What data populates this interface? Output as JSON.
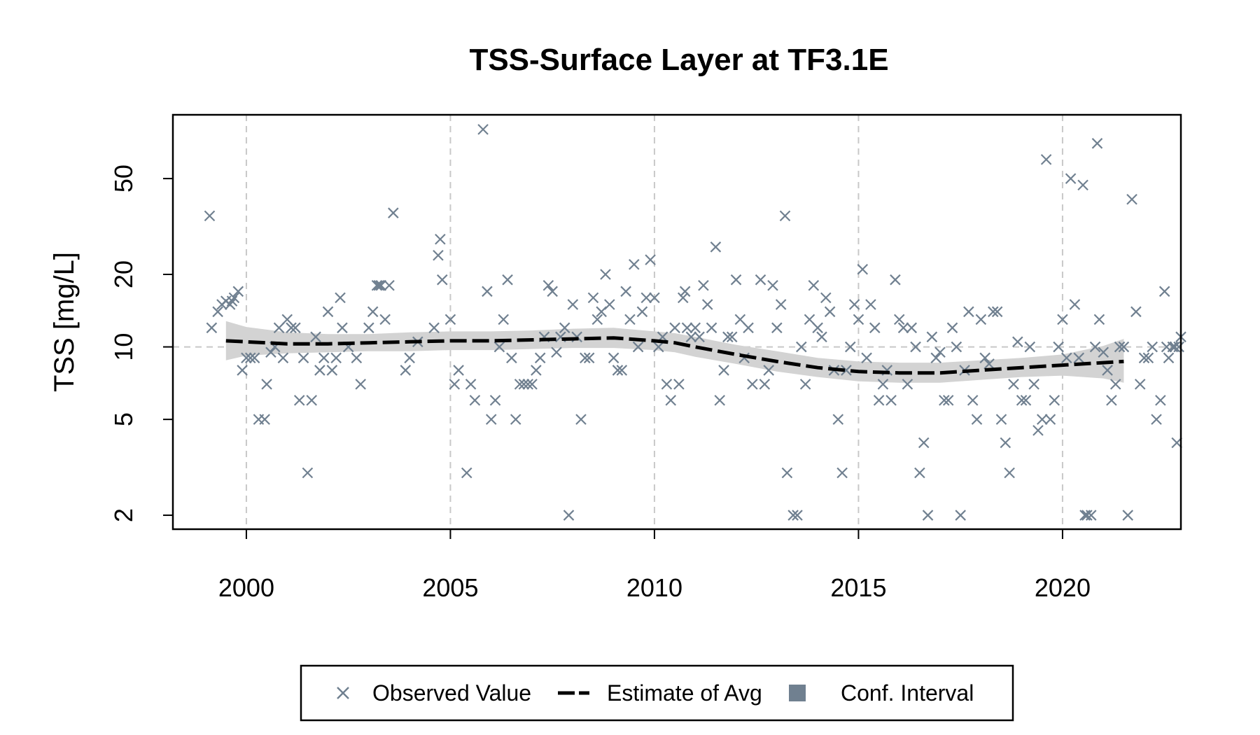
{
  "chart_data": {
    "type": "scatter",
    "title": "TSS-Surface Layer at TF3.1E",
    "xlabel": "",
    "ylabel": "TSS [mg/L]",
    "y_scale": "log",
    "xlim": [
      1998.2,
      2022.9
    ],
    "ylim": [
      1.75,
      92
    ],
    "x_ticks": [
      2000,
      2005,
      2010,
      2015,
      2020
    ],
    "x_tick_labels": [
      "2000",
      "2005",
      "2010",
      "2015",
      "2020"
    ],
    "y_ticks": [
      2,
      5,
      10,
      20,
      50
    ],
    "y_tick_labels": [
      "2",
      "5",
      "10",
      "20",
      "50"
    ],
    "grid": true,
    "reference_line_y": 10,
    "colors": {
      "observed": "#708090",
      "estimate": "#000000",
      "ci": "#d3d3d3",
      "grid": "#c8c8c8"
    },
    "legend": {
      "position": "bottom",
      "items": [
        {
          "label": "Observed Value",
          "marker": "cross"
        },
        {
          "label": "Estimate of Avg",
          "marker": "dashed-line"
        },
        {
          "label": "Conf. Interval",
          "marker": "square"
        }
      ]
    },
    "series": [
      {
        "name": "Observed Value",
        "kind": "points",
        "points": [
          [
            1999.1,
            35
          ],
          [
            1999.15,
            12
          ],
          [
            1999.3,
            14
          ],
          [
            1999.4,
            15
          ],
          [
            1999.5,
            15.5
          ],
          [
            1999.6,
            15
          ],
          [
            1999.7,
            16
          ],
          [
            1999.8,
            17
          ],
          [
            1999.65,
            15.5
          ],
          [
            1999.9,
            8
          ],
          [
            2000.0,
            9
          ],
          [
            2000.1,
            9
          ],
          [
            2000.2,
            9
          ],
          [
            2000.3,
            5
          ],
          [
            2000.45,
            5
          ],
          [
            2000.5,
            7
          ],
          [
            2000.6,
            9.5
          ],
          [
            2000.7,
            10
          ],
          [
            2000.8,
            12
          ],
          [
            2000.9,
            9
          ],
          [
            2001.0,
            13
          ],
          [
            2001.1,
            12
          ],
          [
            2001.2,
            12
          ],
          [
            2001.3,
            6
          ],
          [
            2001.4,
            9
          ],
          [
            2001.5,
            3
          ],
          [
            2001.6,
            6
          ],
          [
            2001.7,
            11
          ],
          [
            2001.8,
            8
          ],
          [
            2001.9,
            9
          ],
          [
            2002.0,
            14
          ],
          [
            2002.1,
            8
          ],
          [
            2002.2,
            9
          ],
          [
            2002.3,
            16
          ],
          [
            2002.35,
            12
          ],
          [
            2002.5,
            10
          ],
          [
            2002.7,
            9
          ],
          [
            2002.8,
            7
          ],
          [
            2003.0,
            12
          ],
          [
            2003.1,
            14
          ],
          [
            2003.2,
            18
          ],
          [
            2003.25,
            18
          ],
          [
            2003.3,
            18
          ],
          [
            2003.4,
            13
          ],
          [
            2003.5,
            18
          ],
          [
            2003.6,
            36
          ],
          [
            2003.9,
            8
          ],
          [
            2004.0,
            9
          ],
          [
            2004.2,
            10.5
          ],
          [
            2004.6,
            12
          ],
          [
            2004.7,
            24
          ],
          [
            2004.75,
            28
          ],
          [
            2004.8,
            19
          ],
          [
            2005.0,
            13
          ],
          [
            2005.1,
            7
          ],
          [
            2005.2,
            8
          ],
          [
            2005.4,
            3
          ],
          [
            2005.5,
            7
          ],
          [
            2005.6,
            6
          ],
          [
            2005.8,
            80
          ],
          [
            2005.9,
            17
          ],
          [
            2006.0,
            5
          ],
          [
            2006.1,
            6
          ],
          [
            2006.2,
            10
          ],
          [
            2006.3,
            13
          ],
          [
            2006.4,
            19
          ],
          [
            2006.5,
            9
          ],
          [
            2006.6,
            5
          ],
          [
            2006.7,
            7
          ],
          [
            2006.8,
            7
          ],
          [
            2006.9,
            7
          ],
          [
            2007.0,
            7
          ],
          [
            2007.1,
            8
          ],
          [
            2007.2,
            9
          ],
          [
            2007.3,
            11
          ],
          [
            2007.4,
            18
          ],
          [
            2007.5,
            17
          ],
          [
            2007.6,
            9.5
          ],
          [
            2007.7,
            11
          ],
          [
            2007.8,
            12
          ],
          [
            2007.9,
            2
          ],
          [
            2008.0,
            15
          ],
          [
            2008.1,
            11
          ],
          [
            2008.2,
            5
          ],
          [
            2008.3,
            9
          ],
          [
            2008.4,
            9
          ],
          [
            2008.5,
            16
          ],
          [
            2008.6,
            13
          ],
          [
            2008.7,
            14
          ],
          [
            2008.8,
            20
          ],
          [
            2008.9,
            15
          ],
          [
            2009.0,
            9
          ],
          [
            2009.1,
            8
          ],
          [
            2009.2,
            8
          ],
          [
            2009.3,
            17
          ],
          [
            2009.4,
            13
          ],
          [
            2009.5,
            22
          ],
          [
            2009.6,
            10
          ],
          [
            2009.7,
            14
          ],
          [
            2009.8,
            16
          ],
          [
            2009.9,
            23
          ],
          [
            2010.0,
            16
          ],
          [
            2010.1,
            10
          ],
          [
            2010.2,
            11
          ],
          [
            2010.3,
            7
          ],
          [
            2010.4,
            6
          ],
          [
            2010.5,
            12
          ],
          [
            2010.6,
            7
          ],
          [
            2010.7,
            16
          ],
          [
            2010.75,
            17
          ],
          [
            2010.8,
            12
          ],
          [
            2010.9,
            11
          ],
          [
            2011.0,
            12
          ],
          [
            2011.1,
            11
          ],
          [
            2011.2,
            18
          ],
          [
            2011.3,
            15
          ],
          [
            2011.4,
            12
          ],
          [
            2011.5,
            26
          ],
          [
            2011.6,
            6
          ],
          [
            2011.7,
            8
          ],
          [
            2011.8,
            11
          ],
          [
            2011.9,
            11
          ],
          [
            2012.0,
            19
          ],
          [
            2012.1,
            13
          ],
          [
            2012.2,
            9
          ],
          [
            2012.3,
            12
          ],
          [
            2012.4,
            7
          ],
          [
            2012.6,
            19
          ],
          [
            2012.7,
            7
          ],
          [
            2012.8,
            8
          ],
          [
            2012.9,
            18
          ],
          [
            2013.0,
            12
          ],
          [
            2013.1,
            15
          ],
          [
            2013.2,
            35
          ],
          [
            2013.25,
            3
          ],
          [
            2013.4,
            2
          ],
          [
            2013.5,
            2
          ],
          [
            2013.6,
            10
          ],
          [
            2013.7,
            7
          ],
          [
            2013.8,
            13
          ],
          [
            2013.9,
            18
          ],
          [
            2014.0,
            12
          ],
          [
            2014.1,
            11
          ],
          [
            2014.2,
            16
          ],
          [
            2014.3,
            14
          ],
          [
            2014.4,
            8
          ],
          [
            2014.5,
            5
          ],
          [
            2014.6,
            3
          ],
          [
            2014.7,
            8
          ],
          [
            2014.8,
            10
          ],
          [
            2014.9,
            15
          ],
          [
            2015.0,
            13
          ],
          [
            2015.1,
            21
          ],
          [
            2015.2,
            9
          ],
          [
            2015.3,
            15
          ],
          [
            2015.4,
            12
          ],
          [
            2015.5,
            6
          ],
          [
            2015.6,
            7
          ],
          [
            2015.7,
            8
          ],
          [
            2015.8,
            6
          ],
          [
            2015.9,
            19
          ],
          [
            2016.0,
            13
          ],
          [
            2016.1,
            12
          ],
          [
            2016.2,
            7
          ],
          [
            2016.3,
            12
          ],
          [
            2016.4,
            10
          ],
          [
            2016.5,
            3
          ],
          [
            2016.6,
            4
          ],
          [
            2016.7,
            2
          ],
          [
            2016.8,
            11
          ],
          [
            2016.9,
            9
          ],
          [
            2017.0,
            9.5
          ],
          [
            2017.1,
            6
          ],
          [
            2017.2,
            6
          ],
          [
            2017.3,
            12
          ],
          [
            2017.4,
            10
          ],
          [
            2017.5,
            2
          ],
          [
            2017.6,
            8
          ],
          [
            2017.7,
            14
          ],
          [
            2017.8,
            6
          ],
          [
            2017.9,
            5
          ],
          [
            2018.0,
            13
          ],
          [
            2018.1,
            9
          ],
          [
            2018.2,
            8.5
          ],
          [
            2018.3,
            14
          ],
          [
            2018.4,
            14
          ],
          [
            2018.5,
            5
          ],
          [
            2018.6,
            4
          ],
          [
            2018.7,
            3
          ],
          [
            2018.8,
            7
          ],
          [
            2018.9,
            10.5
          ],
          [
            2019.0,
            6
          ],
          [
            2019.1,
            6
          ],
          [
            2019.2,
            10
          ],
          [
            2019.3,
            7
          ],
          [
            2019.4,
            4.5
          ],
          [
            2019.5,
            5
          ],
          [
            2019.6,
            60
          ],
          [
            2019.7,
            5
          ],
          [
            2019.8,
            6
          ],
          [
            2019.9,
            10
          ],
          [
            2020.0,
            13
          ],
          [
            2020.1,
            9
          ],
          [
            2020.2,
            50
          ],
          [
            2020.3,
            15
          ],
          [
            2020.4,
            9
          ],
          [
            2020.5,
            47
          ],
          [
            2020.55,
            2
          ],
          [
            2020.6,
            2
          ],
          [
            2020.7,
            2
          ],
          [
            2020.8,
            10
          ],
          [
            2020.85,
            70
          ],
          [
            2020.9,
            13
          ],
          [
            2021.0,
            9.5
          ],
          [
            2021.1,
            8
          ],
          [
            2021.2,
            6
          ],
          [
            2021.3,
            7
          ],
          [
            2021.4,
            10
          ],
          [
            2021.5,
            10
          ],
          [
            2021.6,
            2
          ],
          [
            2021.7,
            41
          ],
          [
            2021.8,
            14
          ],
          [
            2021.9,
            7
          ],
          [
            2022.0,
            9
          ],
          [
            2022.1,
            9
          ],
          [
            2022.2,
            10
          ],
          [
            2022.3,
            5
          ],
          [
            2022.4,
            6
          ],
          [
            2022.5,
            17
          ],
          [
            2022.55,
            10
          ],
          [
            2022.6,
            9
          ],
          [
            2022.7,
            10
          ],
          [
            2022.75,
            10
          ],
          [
            2022.8,
            4
          ],
          [
            2022.85,
            10
          ],
          [
            2022.9,
            11
          ]
        ]
      },
      {
        "name": "Estimate of Avg",
        "kind": "line",
        "x": [
          1999.5,
          2000.0,
          2001.0,
          2002.0,
          2003.0,
          2004.0,
          2005.0,
          2006.0,
          2007.0,
          2008.0,
          2009.0,
          2010.0,
          2010.5,
          2011.0,
          2012.0,
          2013.0,
          2014.0,
          2015.0,
          2016.0,
          2017.0,
          2018.0,
          2019.0,
          2020.0,
          2021.0,
          2021.5
        ],
        "y": [
          10.6,
          10.5,
          10.3,
          10.3,
          10.4,
          10.5,
          10.6,
          10.6,
          10.7,
          10.8,
          10.9,
          10.6,
          10.4,
          10.0,
          9.3,
          8.7,
          8.2,
          7.9,
          7.8,
          7.8,
          8.0,
          8.2,
          8.4,
          8.6,
          8.7
        ]
      },
      {
        "name": "Conf. Interval",
        "kind": "band",
        "x": [
          1999.5,
          2000.0,
          2001.0,
          2002.0,
          2003.0,
          2004.0,
          2005.0,
          2006.0,
          2007.0,
          2008.0,
          2009.0,
          2010.0,
          2010.5,
          2011.0,
          2012.0,
          2013.0,
          2014.0,
          2015.0,
          2016.0,
          2017.0,
          2018.0,
          2019.0,
          2020.0,
          2021.0,
          2021.5
        ],
        "lower": [
          8.8,
          9.2,
          9.4,
          9.5,
          9.6,
          9.6,
          9.7,
          9.7,
          9.8,
          9.9,
          9.9,
          9.7,
          9.5,
          9.1,
          8.5,
          7.9,
          7.5,
          7.2,
          7.1,
          7.1,
          7.3,
          7.5,
          7.6,
          7.4,
          7.1
        ],
        "upper": [
          12.8,
          12.1,
          11.5,
          11.3,
          11.3,
          11.5,
          11.6,
          11.6,
          11.7,
          11.9,
          12.0,
          11.6,
          11.4,
          11.0,
          10.2,
          9.6,
          9.0,
          8.7,
          8.6,
          8.6,
          8.8,
          9.0,
          9.3,
          10.1,
          10.8
        ]
      }
    ]
  }
}
